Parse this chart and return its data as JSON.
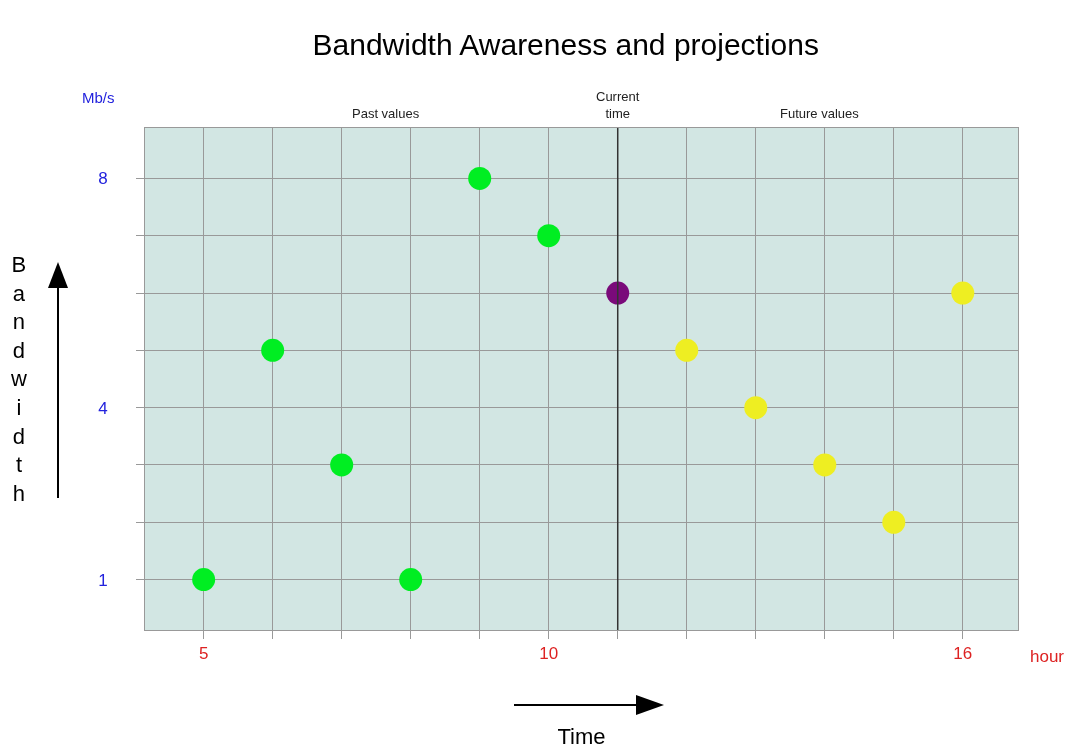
{
  "chart_data": {
    "type": "scatter",
    "title": "Bandwidth Awareness and projections",
    "xlabel": "Time",
    "ylabel": "Bandwidth",
    "annotations": [
      "Past values",
      "Future values",
      "Mb/s",
      "hour"
    ],
    "series": [
      {
        "color": "#00ee22",
        "x": [
          5,
          6,
          7,
          8,
          9,
          10
        ],
        "values": [
          1,
          5,
          3,
          1,
          8,
          7
        ]
      },
      {
        "color": "#7a0a7a",
        "x": [
          11
        ],
        "values": [
          6
        ]
      },
      {
        "color": "#eeee22",
        "x": [
          12,
          13,
          14,
          15,
          16
        ],
        "values": [
          5,
          4,
          3,
          2,
          6
        ]
      }
    ],
    "marker": "circle",
    "grid": true,
    "ref_lines": [
      {
        "axis": "x",
        "value": 11,
        "label": "Current time",
        "color": "#333333"
      }
    ],
    "xlim": [
      4.15,
      16.8
    ],
    "ylim": [
      0.12,
      8.88
    ],
    "xticks": [
      5,
      {
        "value": 6,
        "label": null
      },
      {
        "value": 7,
        "label": null
      },
      {
        "value": 8,
        "label": null
      },
      {
        "value": 9,
        "label": null
      },
      10,
      {
        "value": 11,
        "label": null
      },
      {
        "value": 12,
        "label": null
      },
      {
        "value": 13,
        "label": null
      },
      {
        "value": 14,
        "label": null
      },
      {
        "value": 15,
        "label": null
      },
      16
    ],
    "yticks": [
      1,
      {
        "value": 2,
        "label": null
      },
      {
        "value": 3,
        "label": null
      },
      4,
      {
        "value": 5,
        "label": null
      },
      {
        "value": 6,
        "label": null
      },
      {
        "value": 7,
        "label": null
      },
      8
    ]
  }
}
